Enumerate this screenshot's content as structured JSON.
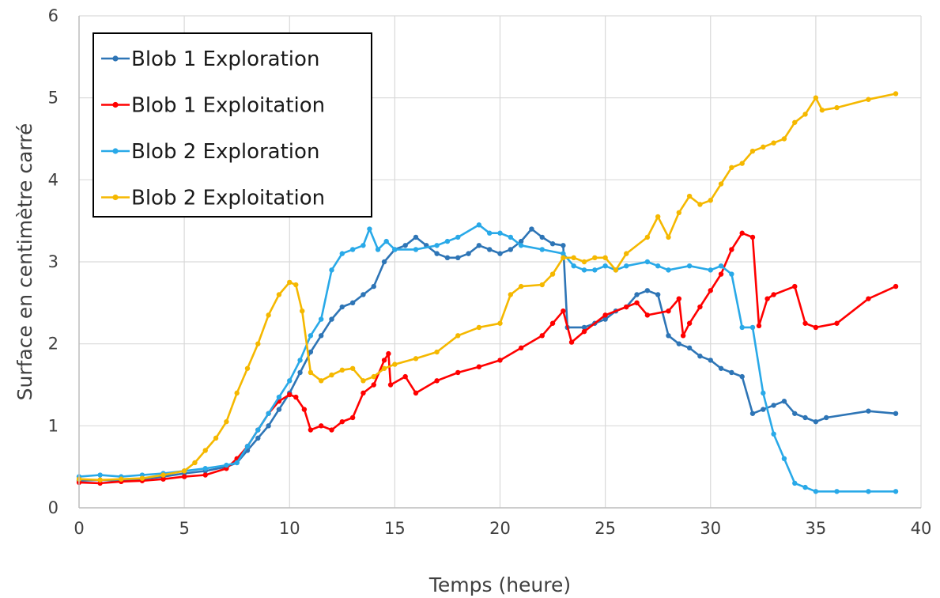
{
  "chart_data": {
    "type": "line",
    "title": "",
    "xlabel": "Temps (heure)",
    "ylabel": "Surface en centimètre carré",
    "xlim": [
      0,
      40
    ],
    "ylim": [
      0,
      6
    ],
    "xticks": [
      0,
      5,
      10,
      15,
      20,
      25,
      30,
      35,
      40
    ],
    "yticks": [
      0,
      1,
      2,
      3,
      4,
      5,
      6
    ],
    "grid": true,
    "legend_position": "top-left",
    "series": [
      {
        "name": "Blob 1 Exploration",
        "color": "#2e75b6",
        "points": [
          [
            0,
            0.33
          ],
          [
            1,
            0.34
          ],
          [
            2,
            0.33
          ],
          [
            3,
            0.35
          ],
          [
            4,
            0.38
          ],
          [
            5,
            0.42
          ],
          [
            6,
            0.45
          ],
          [
            7,
            0.5
          ],
          [
            7.5,
            0.55
          ],
          [
            8,
            0.7
          ],
          [
            8.5,
            0.85
          ],
          [
            9,
            1.0
          ],
          [
            9.5,
            1.2
          ],
          [
            10,
            1.4
          ],
          [
            10.5,
            1.65
          ],
          [
            11,
            1.9
          ],
          [
            11.5,
            2.1
          ],
          [
            12,
            2.3
          ],
          [
            12.5,
            2.45
          ],
          [
            13,
            2.5
          ],
          [
            13.5,
            2.6
          ],
          [
            14,
            2.7
          ],
          [
            14.5,
            3.0
          ],
          [
            15,
            3.15
          ],
          [
            15.5,
            3.2
          ],
          [
            16,
            3.3
          ],
          [
            16.5,
            3.2
          ],
          [
            17,
            3.1
          ],
          [
            17.5,
            3.05
          ],
          [
            18,
            3.05
          ],
          [
            18.5,
            3.1
          ],
          [
            19,
            3.2
          ],
          [
            19.5,
            3.15
          ],
          [
            20,
            3.1
          ],
          [
            20.5,
            3.15
          ],
          [
            21,
            3.25
          ],
          [
            21.5,
            3.4
          ],
          [
            22,
            3.3
          ],
          [
            22.5,
            3.22
          ],
          [
            23,
            3.2
          ],
          [
            23.2,
            2.2
          ],
          [
            24,
            2.2
          ],
          [
            24.5,
            2.25
          ],
          [
            25,
            2.3
          ],
          [
            25.5,
            2.4
          ],
          [
            26,
            2.45
          ],
          [
            26.5,
            2.6
          ],
          [
            27,
            2.65
          ],
          [
            27.5,
            2.6
          ],
          [
            28,
            2.1
          ],
          [
            28.5,
            2.0
          ],
          [
            29,
            1.95
          ],
          [
            29.5,
            1.85
          ],
          [
            30,
            1.8
          ],
          [
            30.5,
            1.7
          ],
          [
            31,
            1.65
          ],
          [
            31.5,
            1.6
          ],
          [
            32,
            1.15
          ],
          [
            32.5,
            1.2
          ],
          [
            33,
            1.25
          ],
          [
            33.5,
            1.3
          ],
          [
            34,
            1.15
          ],
          [
            34.5,
            1.1
          ],
          [
            35,
            1.05
          ],
          [
            35.5,
            1.1
          ],
          [
            37.5,
            1.18
          ],
          [
            38.8,
            1.15
          ]
        ]
      },
      {
        "name": "Blob 1 Exploitation",
        "color": "#ff0000",
        "points": [
          [
            0,
            0.31
          ],
          [
            1,
            0.3
          ],
          [
            2,
            0.32
          ],
          [
            3,
            0.33
          ],
          [
            4,
            0.35
          ],
          [
            5,
            0.38
          ],
          [
            6,
            0.4
          ],
          [
            7,
            0.48
          ],
          [
            7.5,
            0.6
          ],
          [
            8,
            0.75
          ],
          [
            8.5,
            0.95
          ],
          [
            9,
            1.15
          ],
          [
            9.5,
            1.3
          ],
          [
            10,
            1.38
          ],
          [
            10.3,
            1.35
          ],
          [
            10.7,
            1.2
          ],
          [
            11,
            0.95
          ],
          [
            11.5,
            1.0
          ],
          [
            12,
            0.95
          ],
          [
            12.5,
            1.05
          ],
          [
            13,
            1.1
          ],
          [
            13.5,
            1.4
          ],
          [
            14,
            1.5
          ],
          [
            14.5,
            1.8
          ],
          [
            14.7,
            1.88
          ],
          [
            14.8,
            1.5
          ],
          [
            15.5,
            1.6
          ],
          [
            16,
            1.4
          ],
          [
            17,
            1.55
          ],
          [
            18,
            1.65
          ],
          [
            19,
            1.72
          ],
          [
            20,
            1.8
          ],
          [
            21,
            1.95
          ],
          [
            22,
            2.1
          ],
          [
            22.5,
            2.25
          ],
          [
            23,
            2.4
          ],
          [
            23.4,
            2.02
          ],
          [
            24,
            2.15
          ],
          [
            25,
            2.35
          ],
          [
            26,
            2.45
          ],
          [
            26.5,
            2.5
          ],
          [
            27,
            2.35
          ],
          [
            28,
            2.4
          ],
          [
            28.5,
            2.55
          ],
          [
            28.7,
            2.1
          ],
          [
            29,
            2.25
          ],
          [
            29.5,
            2.45
          ],
          [
            30,
            2.65
          ],
          [
            30.5,
            2.85
          ],
          [
            31,
            3.15
          ],
          [
            31.5,
            3.35
          ],
          [
            32,
            3.3
          ],
          [
            32.3,
            2.22
          ],
          [
            32.7,
            2.55
          ],
          [
            33,
            2.6
          ],
          [
            34,
            2.7
          ],
          [
            34.5,
            2.25
          ],
          [
            35,
            2.2
          ],
          [
            36,
            2.25
          ],
          [
            37.5,
            2.55
          ],
          [
            38.8,
            2.7
          ]
        ]
      },
      {
        "name": "Blob 2 Exploration",
        "color": "#29a9e8",
        "points": [
          [
            0,
            0.38
          ],
          [
            1,
            0.4
          ],
          [
            2,
            0.38
          ],
          [
            3,
            0.4
          ],
          [
            4,
            0.42
          ],
          [
            5,
            0.45
          ],
          [
            6,
            0.48
          ],
          [
            7,
            0.52
          ],
          [
            7.5,
            0.55
          ],
          [
            8,
            0.75
          ],
          [
            8.5,
            0.95
          ],
          [
            9,
            1.15
          ],
          [
            9.5,
            1.35
          ],
          [
            10,
            1.55
          ],
          [
            10.5,
            1.8
          ],
          [
            11,
            2.1
          ],
          [
            11.5,
            2.3
          ],
          [
            12,
            2.9
          ],
          [
            12.5,
            3.1
          ],
          [
            13,
            3.15
          ],
          [
            13.5,
            3.2
          ],
          [
            13.8,
            3.4
          ],
          [
            14.2,
            3.15
          ],
          [
            14.6,
            3.25
          ],
          [
            15,
            3.15
          ],
          [
            16,
            3.15
          ],
          [
            17,
            3.2
          ],
          [
            17.5,
            3.25
          ],
          [
            18,
            3.3
          ],
          [
            19,
            3.45
          ],
          [
            19.5,
            3.35
          ],
          [
            20,
            3.35
          ],
          [
            20.5,
            3.3
          ],
          [
            21,
            3.2
          ],
          [
            22,
            3.15
          ],
          [
            23,
            3.1
          ],
          [
            23.5,
            2.95
          ],
          [
            24,
            2.9
          ],
          [
            24.5,
            2.9
          ],
          [
            25,
            2.95
          ],
          [
            25.5,
            2.9
          ],
          [
            26,
            2.95
          ],
          [
            27,
            3.0
          ],
          [
            27.5,
            2.95
          ],
          [
            28,
            2.9
          ],
          [
            29,
            2.95
          ],
          [
            30,
            2.9
          ],
          [
            30.5,
            2.95
          ],
          [
            31,
            2.85
          ],
          [
            31.5,
            2.2
          ],
          [
            32,
            2.2
          ],
          [
            32.5,
            1.4
          ],
          [
            33,
            0.9
          ],
          [
            33.5,
            0.6
          ],
          [
            34,
            0.3
          ],
          [
            34.5,
            0.25
          ],
          [
            35,
            0.2
          ],
          [
            36,
            0.2
          ],
          [
            37.5,
            0.2
          ],
          [
            38.8,
            0.2
          ]
        ]
      },
      {
        "name": "Blob 2 Exploitation",
        "color": "#f5b800",
        "points": [
          [
            0,
            0.35
          ],
          [
            1,
            0.34
          ],
          [
            2,
            0.35
          ],
          [
            3,
            0.36
          ],
          [
            4,
            0.4
          ],
          [
            5,
            0.45
          ],
          [
            5.5,
            0.55
          ],
          [
            6,
            0.7
          ],
          [
            6.5,
            0.85
          ],
          [
            7,
            1.05
          ],
          [
            7.5,
            1.4
          ],
          [
            8,
            1.7
          ],
          [
            8.5,
            2.0
          ],
          [
            9,
            2.35
          ],
          [
            9.5,
            2.6
          ],
          [
            10,
            2.75
          ],
          [
            10.3,
            2.72
          ],
          [
            10.6,
            2.4
          ],
          [
            11,
            1.65
          ],
          [
            11.5,
            1.55
          ],
          [
            12,
            1.62
          ],
          [
            12.5,
            1.68
          ],
          [
            13,
            1.7
          ],
          [
            13.5,
            1.55
          ],
          [
            14,
            1.6
          ],
          [
            14.5,
            1.7
          ],
          [
            15,
            1.75
          ],
          [
            16,
            1.82
          ],
          [
            17,
            1.9
          ],
          [
            18,
            2.1
          ],
          [
            19,
            2.2
          ],
          [
            20,
            2.25
          ],
          [
            20.5,
            2.6
          ],
          [
            21,
            2.7
          ],
          [
            22,
            2.72
          ],
          [
            22.5,
            2.85
          ],
          [
            23,
            3.05
          ],
          [
            23.5,
            3.05
          ],
          [
            24,
            3.0
          ],
          [
            24.5,
            3.05
          ],
          [
            25,
            3.05
          ],
          [
            25.5,
            2.9
          ],
          [
            26,
            3.1
          ],
          [
            27,
            3.3
          ],
          [
            27.5,
            3.55
          ],
          [
            28,
            3.3
          ],
          [
            28.5,
            3.6
          ],
          [
            29,
            3.8
          ],
          [
            29.5,
            3.7
          ],
          [
            30,
            3.75
          ],
          [
            30.5,
            3.95
          ],
          [
            31,
            4.15
          ],
          [
            31.5,
            4.2
          ],
          [
            32,
            4.35
          ],
          [
            32.5,
            4.4
          ],
          [
            33,
            4.45
          ],
          [
            33.5,
            4.5
          ],
          [
            34,
            4.7
          ],
          [
            34.5,
            4.8
          ],
          [
            35,
            5.0
          ],
          [
            35.3,
            4.85
          ],
          [
            36,
            4.88
          ],
          [
            37.5,
            4.98
          ],
          [
            38.8,
            5.05
          ]
        ]
      }
    ]
  }
}
